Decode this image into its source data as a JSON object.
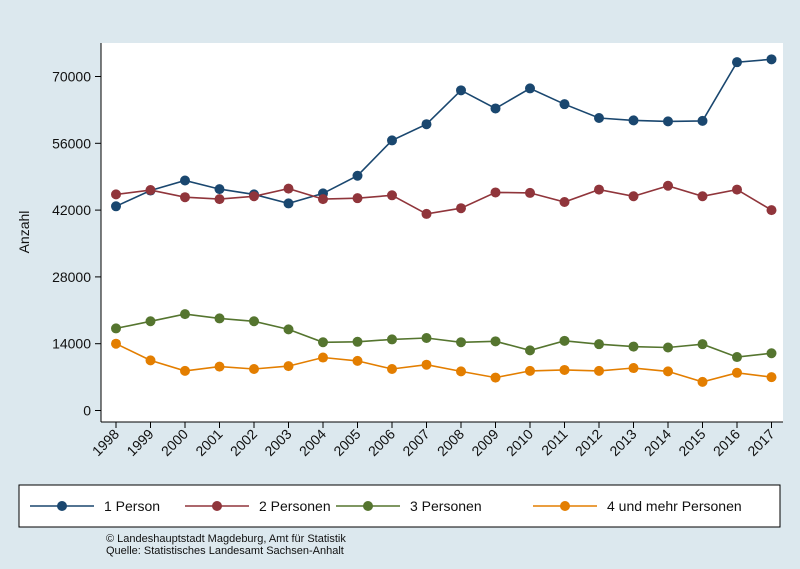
{
  "chart_data": {
    "type": "line",
    "ylabel": "Anzahl",
    "xlabel": "",
    "ylim": [
      0,
      73500
    ],
    "yticks": [
      0,
      14000,
      28000,
      42000,
      56000,
      70000
    ],
    "x": [
      "1998",
      "1999",
      "2000",
      "2001",
      "2002",
      "2003",
      "2004",
      "2005",
      "2006",
      "2007",
      "2008",
      "2009",
      "2010",
      "2011",
      "2012",
      "2013",
      "2014",
      "2015",
      "2016",
      "2017"
    ],
    "grid": false,
    "legend_position": "bottom",
    "series": [
      {
        "name": "1 Person",
        "color": "#1a476f",
        "values": [
          42800,
          46100,
          48200,
          46400,
          45300,
          43400,
          45500,
          49200,
          56600,
          60000,
          67100,
          63300,
          67500,
          64200,
          61300,
          60800,
          60600,
          60700,
          73000,
          73600
        ]
      },
      {
        "name": "2 Personen",
        "color": "#90353b",
        "values": [
          45300,
          46200,
          44700,
          44300,
          44900,
          46500,
          44300,
          44500,
          45100,
          41200,
          42400,
          45700,
          45600,
          43700,
          46300,
          44900,
          47100,
          44900,
          46300,
          42000
        ]
      },
      {
        "name": "3 Personen",
        "color": "#55752f",
        "values": [
          17200,
          18700,
          20200,
          19300,
          18700,
          17000,
          14300,
          14400,
          14900,
          15200,
          14300,
          14500,
          12600,
          14600,
          13900,
          13400,
          13200,
          13900,
          11200,
          12000
        ]
      },
      {
        "name": "4 und mehr Personen",
        "color": "#e37e00",
        "values": [
          14000,
          10500,
          8300,
          9200,
          8700,
          9300,
          11100,
          10400,
          8700,
          9600,
          8200,
          6900,
          8300,
          8500,
          8300,
          8900,
          8200,
          6000,
          7900,
          7000
        ]
      }
    ]
  },
  "credits": {
    "line1": "©  Landeshauptstadt Magdeburg, Amt für Statistik",
    "line2": "Quelle: Statistisches Landesamt Sachsen-Anhalt"
  }
}
